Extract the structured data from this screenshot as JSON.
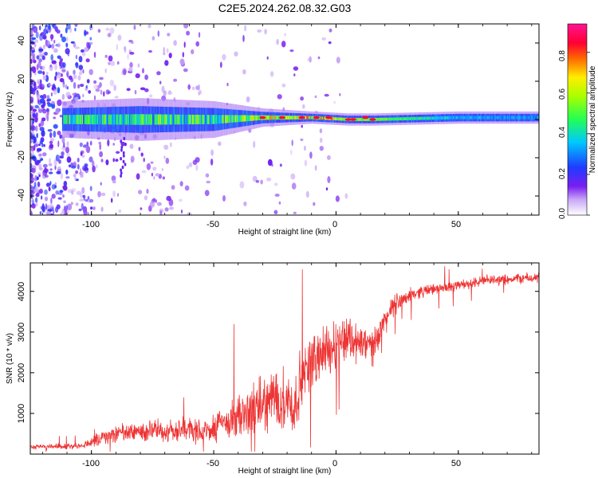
{
  "chart_data": [
    {
      "type": "heatmap",
      "title": "C2E5.2024.262.08.32.G03",
      "xlabel": "Height of straight line (km)",
      "ylabel": "Frequency (Hz)",
      "xlim": [
        -125,
        83
      ],
      "ylim": [
        -50,
        50
      ],
      "x_ticks": [
        "-100",
        "-50",
        "0",
        "50"
      ],
      "y_ticks": [
        "40",
        "20",
        "0",
        "-20",
        "-40"
      ],
      "colorbar": {
        "label": "Normalized spectral amplitude",
        "ticks": [
          "0.8",
          "0.6",
          "0.4",
          "0.2",
          "0.0"
        ],
        "range": [
          0.0,
          0.94
        ]
      },
      "description_points": [
        {
          "x": -110,
          "band_center_hz": 0,
          "band_halfwidth_hz": 6,
          "peak_amplitude": 0.4
        },
        {
          "x": -80,
          "band_center_hz": 0,
          "band_halfwidth_hz": 7,
          "peak_amplitude": 0.45
        },
        {
          "x": -50,
          "band_center_hz": 0,
          "band_halfwidth_hz": 6,
          "peak_amplitude": 0.45
        },
        {
          "x": -30,
          "band_center_hz": 1,
          "band_halfwidth_hz": 3,
          "peak_amplitude": 0.75
        },
        {
          "x": -10,
          "band_center_hz": 1,
          "band_halfwidth_hz": 2,
          "peak_amplitude": 0.85
        },
        {
          "x": 5,
          "band_center_hz": 0,
          "band_halfwidth_hz": 2,
          "peak_amplitude": 0.9
        },
        {
          "x": 15,
          "band_center_hz": 0,
          "band_halfwidth_hz": 2,
          "peak_amplitude": 0.85
        },
        {
          "x": 50,
          "band_center_hz": 1,
          "band_halfwidth_hz": 2,
          "peak_amplitude": 0.5
        },
        {
          "x": 80,
          "band_center_hz": 1,
          "band_halfwidth_hz": 2,
          "peak_amplitude": 0.45
        }
      ]
    },
    {
      "type": "line",
      "title": "",
      "xlabel": "Height of straight line (km)",
      "ylabel": "SNR (10 * v/v)",
      "xlim": [
        -125,
        83
      ],
      "ylim": [
        0,
        4700
      ],
      "x_ticks": [
        "-100",
        "-50",
        "0",
        "50"
      ],
      "y_ticks": [
        "4000",
        "3000",
        "2000",
        "1000"
      ],
      "series": [
        {
          "name": "SNR",
          "color": "#ee3333",
          "x": [
            -125,
            -115,
            -105,
            -100,
            -95,
            -90,
            -85,
            -80,
            -75,
            -70,
            -65,
            -60,
            -55,
            -50,
            -45,
            -40,
            -35,
            -30,
            -25,
            -20,
            -17,
            -15,
            -10,
            -5,
            0,
            5,
            10,
            15,
            20,
            25,
            30,
            35,
            40,
            45,
            50,
            55,
            60,
            65,
            70,
            75,
            83
          ],
          "values": [
            180,
            180,
            200,
            300,
            450,
            500,
            520,
            560,
            570,
            550,
            600,
            620,
            560,
            650,
            800,
            900,
            1050,
            1200,
            1400,
            1350,
            1100,
            1700,
            2300,
            2500,
            2700,
            2900,
            2700,
            2650,
            3300,
            3750,
            3900,
            4000,
            4050,
            4100,
            4150,
            4200,
            4250,
            4280,
            4300,
            4320,
            4330
          ],
          "noise_amplitude": [
            70,
            80,
            90,
            150,
            250,
            300,
            300,
            320,
            330,
            320,
            350,
            380,
            380,
            450,
            550,
            650,
            750,
            850,
            900,
            950,
            900,
            900,
            850,
            800,
            750,
            700,
            650,
            550,
            400,
            300,
            220,
            180,
            170,
            160,
            160,
            160,
            160,
            160,
            160,
            160,
            160
          ]
        }
      ]
    }
  ]
}
